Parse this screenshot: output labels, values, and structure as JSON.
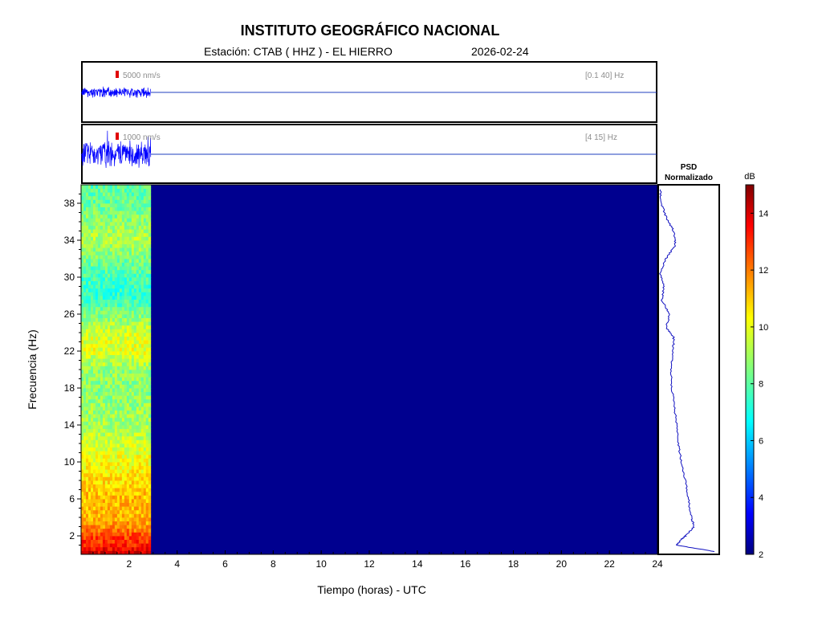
{
  "header": {
    "title": "INSTITUTO GEOGRÁFICO NACIONAL",
    "station_text": "Estación:  CTAB ( HHZ ) - EL HIERRO",
    "date": "2026-02-24"
  },
  "traces": [
    {
      "scale_label": "5000 nm/s",
      "band_label": "[0.1 40] Hz",
      "color": "#0000ff",
      "marker_color": "#e00000"
    },
    {
      "scale_label": "1000 nm/s",
      "band_label": "[4 15] Hz",
      "color": "#0000ff",
      "marker_color": "#e00000"
    }
  ],
  "psd_panel": {
    "title_line1": "PSD",
    "title_line2": "Normalizado"
  },
  "chart_data": {
    "type": "heatmap",
    "xlabel": "Tiempo (horas) - UTC",
    "ylabel": "Frecuencia  (Hz)",
    "xlim": [
      0,
      24
    ],
    "ylim": [
      0,
      40
    ],
    "x_ticks": [
      "2",
      "4",
      "6",
      "8",
      "10",
      "12",
      "14",
      "16",
      "18",
      "20",
      "22",
      "24"
    ],
    "y_ticks": [
      "2",
      "6",
      "10",
      "14",
      "18",
      "22",
      "26",
      "30",
      "34",
      "38"
    ],
    "data_end_hour": 2.9,
    "colorbar": {
      "label": "dB",
      "range": [
        2,
        15
      ],
      "ticks": [
        "2",
        "4",
        "6",
        "8",
        "10",
        "12",
        "14"
      ]
    },
    "energy_profile": {
      "freq_hz": [
        0,
        1,
        2,
        3,
        4,
        6,
        8,
        10,
        12,
        14,
        16,
        18,
        20,
        22,
        24,
        26,
        28,
        30,
        32,
        34,
        36,
        38,
        40
      ],
      "level_db": [
        14,
        13,
        12.5,
        11.5,
        11,
        11,
        10.5,
        10,
        9.5,
        9,
        8.8,
        8.6,
        8.8,
        9.8,
        9.6,
        8.5,
        7.5,
        7.8,
        8.4,
        9.2,
        8.7,
        8.2,
        8.0
      ]
    },
    "psd_normalized": {
      "freq_hz": [
        0.3,
        1,
        1.6,
        2,
        3,
        4,
        6,
        8,
        10,
        12,
        14,
        16,
        18,
        20,
        22,
        23.5,
        24.5,
        26,
        27.5,
        29,
        30.5,
        32,
        33.5,
        35,
        36.5,
        38,
        39.5
      ],
      "value": [
        0.95,
        0.3,
        0.38,
        0.45,
        0.6,
        0.55,
        0.5,
        0.45,
        0.38,
        0.33,
        0.3,
        0.26,
        0.22,
        0.2,
        0.24,
        0.25,
        0.12,
        0.18,
        0.05,
        0.08,
        0.02,
        0.12,
        0.28,
        0.25,
        0.12,
        0.04,
        0.02
      ]
    },
    "grid": false
  }
}
